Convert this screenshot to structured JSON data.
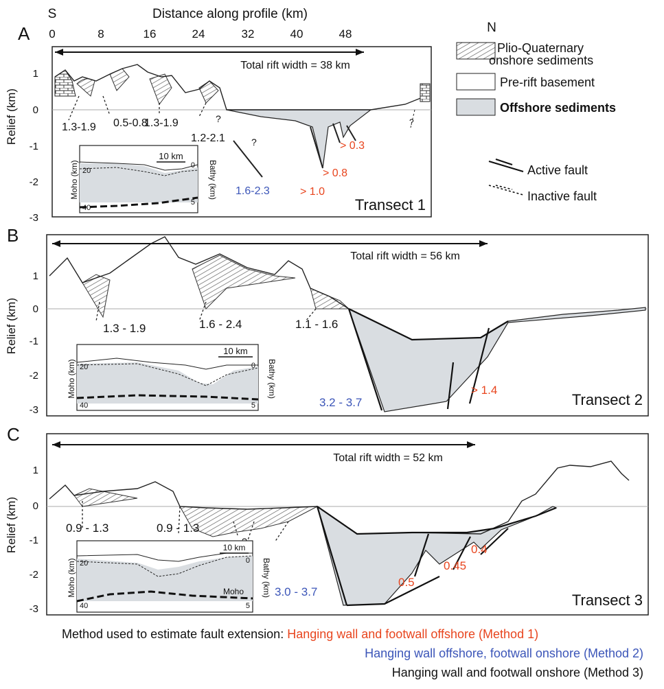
{
  "axis": {
    "x_label": "Distance along profile (km)",
    "x_ticks": [
      "0",
      "8",
      "16",
      "24",
      "32",
      "40",
      "48"
    ],
    "y_label": "Relief (km)",
    "y_ticks": [
      "1",
      "0",
      "-1",
      "-2",
      "-3"
    ],
    "south": "S",
    "north": "N"
  },
  "legend": {
    "plio_line1": "Plio-Quaternary",
    "plio_line2": "onshore sediments",
    "prerift": "Pre-rift basement",
    "offshore": "Offshore sediments",
    "active": "Active fault",
    "inactive": "Inactive fault"
  },
  "panels": [
    {
      "letter": "A",
      "title": "Transect 1",
      "rift": "Total rift width = 38 km",
      "labels": [
        "1.3-1.9",
        "0.5-0.8",
        "1.3-1.9",
        "1.2-2.1",
        "1.6-2.3",
        "> 1.0",
        "> 0.8",
        "> 0.3"
      ]
    },
    {
      "letter": "B",
      "title": "Transect 2",
      "rift": "Total rift width = 56 km",
      "labels": [
        "1.3 - 1.9",
        "1.6 - 2.4",
        "1.1 - 1.6",
        "3.2 - 3.7",
        "> 1.4"
      ]
    },
    {
      "letter": "C",
      "title": "Transect 3",
      "rift": "Total rift width = 52 km",
      "labels": [
        "0.9 - 1.3",
        "0.9 - 1.3",
        "3.0 - 3.7",
        "0.5",
        "0.45",
        "0.4"
      ]
    }
  ],
  "inset": {
    "scale": "10 km",
    "moho_left": "Moho (km)",
    "bathy_right": "Bathy (km)",
    "tick20": "20",
    "tick40": "40",
    "tick0": "0",
    "tick5": "5",
    "moho": "Moho"
  },
  "question": "?",
  "caption": {
    "line1_prefix": "Method used to estimate fault extension: ",
    "method1": "Hanging wall and footwall offshore (Method 1)",
    "method2": "Hanging wall offshore, footwall onshore (Method 2)",
    "method3": "Hanging wall and footwall onshore (Method 3)"
  },
  "colors": {
    "method1": "#e8451e",
    "method2": "#3b55b8",
    "method3": "#111111",
    "offshore_fill": "#d9dde1"
  }
}
